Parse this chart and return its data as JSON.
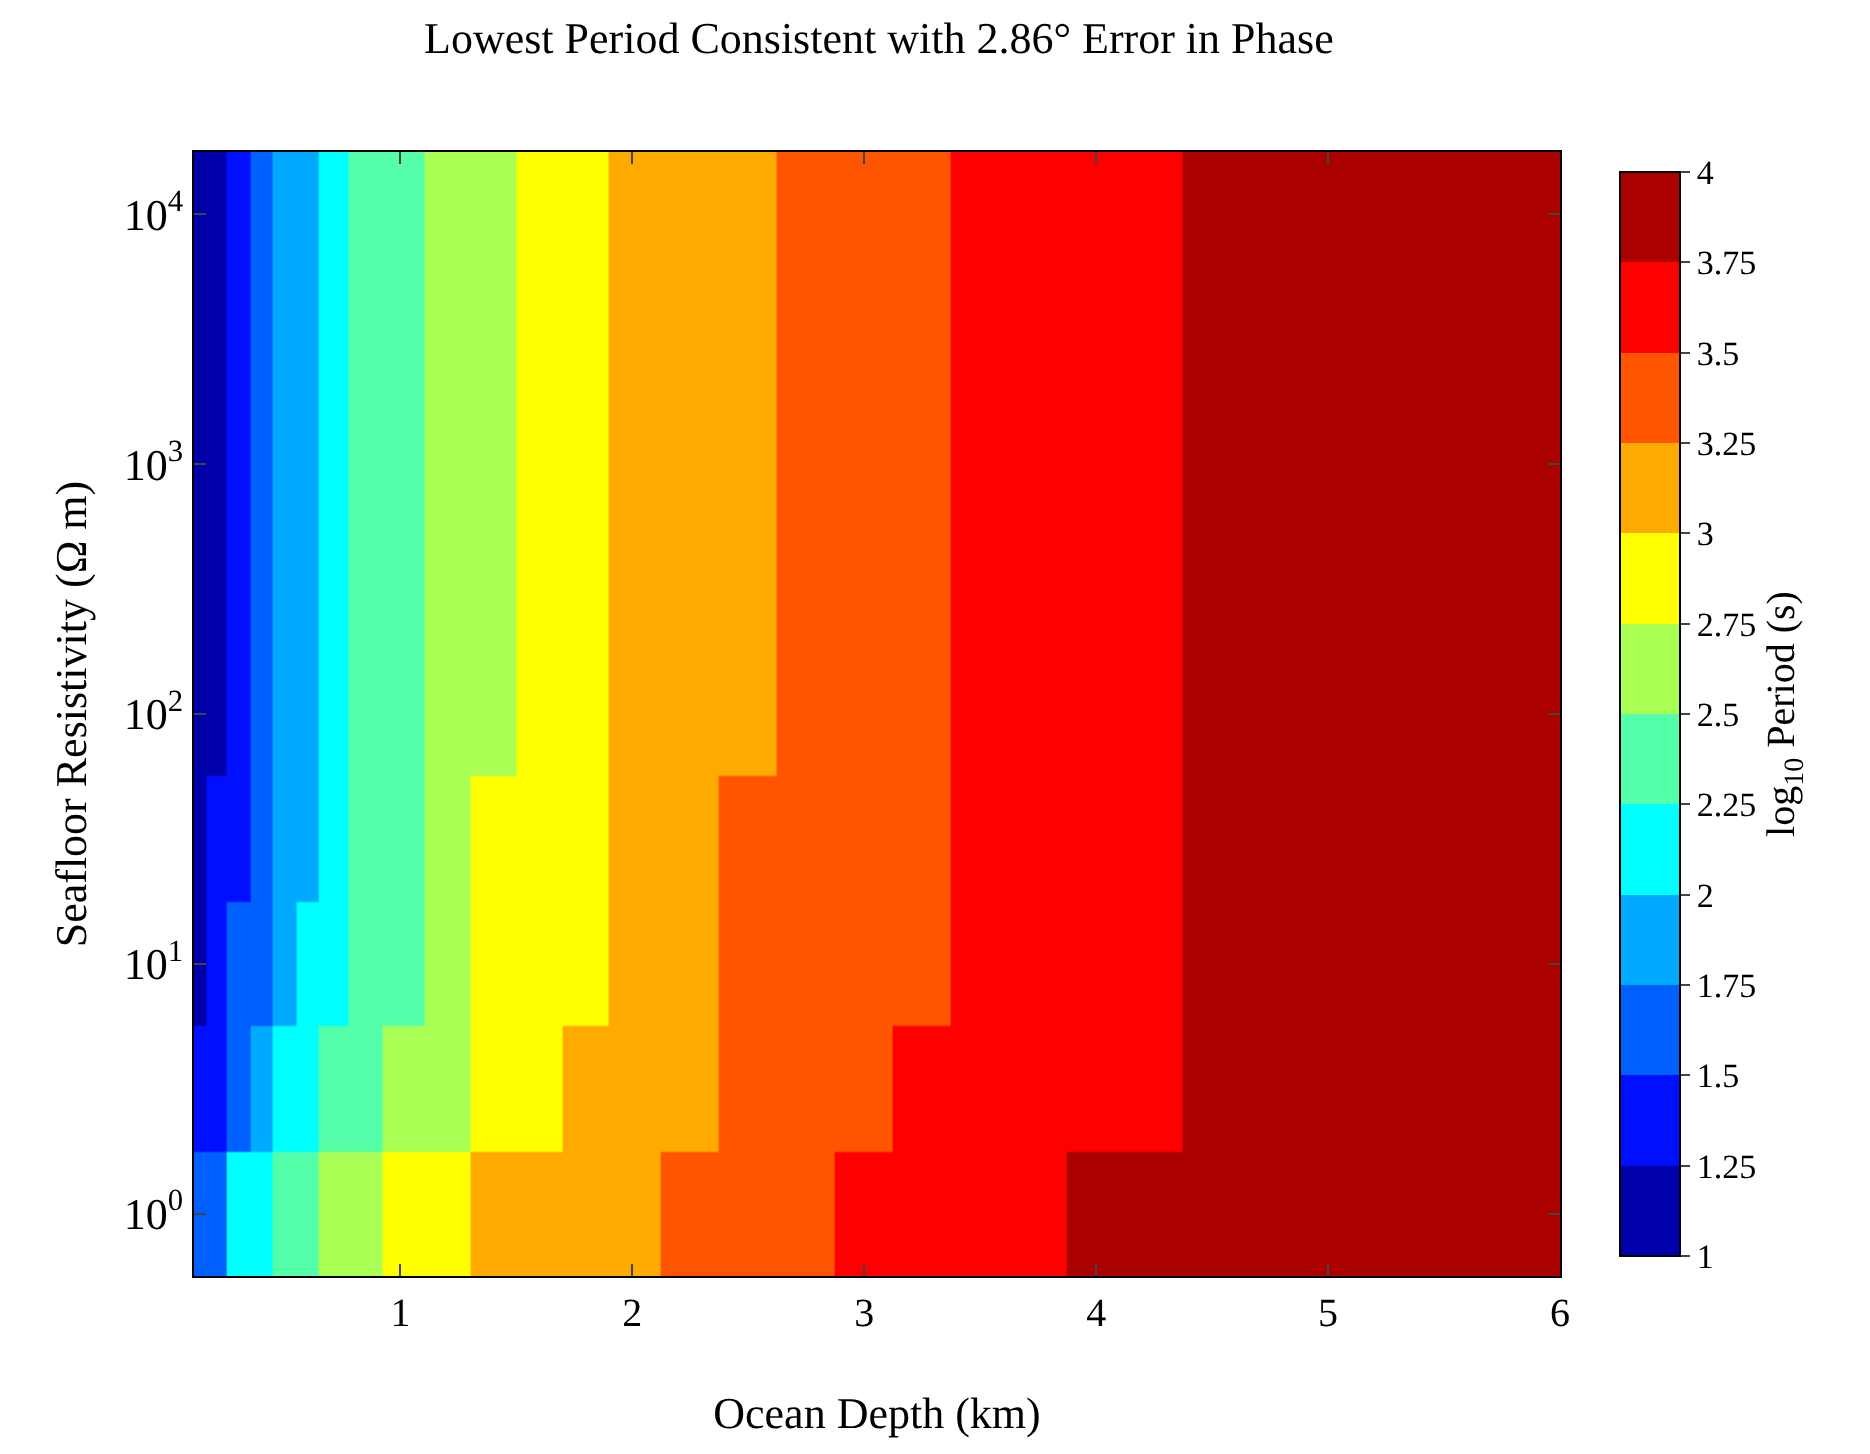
{
  "chart_data": {
    "type": "heatmap",
    "title": "Lowest Period Consistent with 2.86° Error in Phase",
    "xlabel": "Ocean Depth (km)",
    "ylabel": "Seafloor Resistivity (Ω m)",
    "clabel": "log$_{10}$ Period (s)",
    "x": [
      0.13,
      0.2,
      0.3,
      0.4,
      0.5,
      0.6,
      0.7,
      0.85,
      1,
      1.2,
      1.4,
      1.6,
      1.8,
      2,
      2.25,
      2.5,
      2.75,
      3,
      3.25,
      3.5,
      3.75,
      4,
      4.25,
      4.5,
      4.75,
      5,
      5.25,
      5.5,
      5.75,
      6
    ],
    "y_categories": [
      "10$^{4}$",
      null,
      "10$^{3}$",
      null,
      "10$^{2}$",
      null,
      "10$^{1}$",
      null,
      "10$^{0}$"
    ],
    "cells": [
      [
        1.04,
        1.19,
        1.4,
        1.6,
        1.8,
        1.95,
        2.09,
        2.28,
        2.43,
        2.6,
        2.74,
        2.85,
        2.95,
        3.04,
        3.14,
        3.24,
        3.31,
        3.39,
        3.46,
        3.52,
        3.58,
        3.64,
        3.69,
        3.75,
        3.79,
        3.83,
        3.87,
        3.91,
        3.95,
        3.99
      ],
      [
        1.04,
        1.19,
        1.4,
        1.6,
        1.8,
        1.95,
        2.09,
        2.28,
        2.43,
        2.6,
        2.74,
        2.85,
        2.95,
        3.04,
        3.14,
        3.24,
        3.31,
        3.39,
        3.46,
        3.52,
        3.58,
        3.64,
        3.69,
        3.75,
        3.79,
        3.83,
        3.87,
        3.91,
        3.95,
        3.99
      ],
      [
        1.04,
        1.19,
        1.4,
        1.6,
        1.8,
        1.95,
        2.09,
        2.28,
        2.43,
        2.6,
        2.74,
        2.85,
        2.95,
        3.04,
        3.14,
        3.24,
        3.31,
        3.39,
        3.46,
        3.52,
        3.58,
        3.64,
        3.69,
        3.75,
        3.79,
        3.83,
        3.87,
        3.91,
        3.95,
        3.99
      ],
      [
        1.04,
        1.19,
        1.4,
        1.6,
        1.8,
        1.95,
        2.09,
        2.28,
        2.43,
        2.6,
        2.74,
        2.85,
        2.95,
        3.04,
        3.14,
        3.24,
        3.31,
        3.39,
        3.46,
        3.52,
        3.58,
        3.64,
        3.69,
        3.75,
        3.79,
        3.83,
        3.87,
        3.91,
        3.95,
        3.99
      ],
      [
        1.04,
        1.19,
        1.4,
        1.6,
        1.8,
        1.95,
        2.09,
        2.28,
        2.43,
        2.6,
        2.74,
        2.85,
        2.95,
        3.04,
        3.14,
        3.24,
        3.31,
        3.39,
        3.46,
        3.52,
        3.58,
        3.64,
        3.69,
        3.75,
        3.79,
        3.83,
        3.87,
        3.91,
        3.95,
        3.99
      ],
      [
        1.09,
        1.25,
        1.48,
        1.67,
        1.84,
        1.99,
        2.12,
        2.3,
        2.45,
        2.61,
        2.75,
        2.85,
        2.96,
        3.05,
        3.15,
        3.25,
        3.32,
        3.39,
        3.47,
        3.53,
        3.59,
        3.64,
        3.7,
        3.75,
        3.79,
        3.83,
        3.87,
        3.92,
        3.96,
        4.0
      ],
      [
        1.16,
        1.33,
        1.56,
        1.73,
        1.88,
        2.02,
        2.17,
        2.34,
        2.47,
        2.62,
        2.76,
        2.86,
        2.97,
        3.06,
        3.16,
        3.26,
        3.33,
        3.4,
        3.48,
        3.54,
        3.59,
        3.65,
        3.71,
        3.76,
        3.8,
        3.84,
        3.89,
        3.93,
        3.97,
        4.0
      ],
      [
        1.25,
        1.44,
        1.67,
        1.84,
        2.0,
        2.14,
        2.27,
        2.41,
        2.55,
        2.73,
        2.85,
        2.97,
        3.06,
        3.13,
        3.23,
        3.31,
        3.38,
        3.46,
        3.52,
        3.58,
        3.63,
        3.68,
        3.74,
        3.78,
        3.83,
        3.87,
        3.91,
        3.96,
        4.0,
        4.0
      ],
      [
        1.52,
        1.72,
        2.01,
        2.18,
        2.33,
        2.45,
        2.54,
        2.65,
        2.76,
        2.88,
        3.0,
        3.08,
        3.16,
        3.24,
        3.32,
        3.39,
        3.47,
        3.53,
        3.59,
        3.64,
        3.7,
        3.75,
        3.79,
        3.84,
        3.88,
        3.92,
        3.97,
        4.0,
        4.0,
        4.0
      ]
    ],
    "colors": [
      "#0000aa",
      "#0010ff",
      "#0060ff",
      "#00aaff",
      "#00ffff",
      "#55ffaa",
      "#aaff55",
      "#ffff00",
      "#ffaa00",
      "#ff5500",
      "#ff0000",
      "#aa0000"
    ],
    "clim": [
      1,
      4
    ],
    "cticks": [
      1,
      1.25,
      1.5,
      1.75,
      2,
      2.25,
      2.5,
      2.75,
      3,
      3.25,
      3.5,
      3.75,
      4
    ],
    "xlim": [
      0.11,
      6
    ],
    "xticks": [
      1,
      2,
      3,
      4,
      5,
      6
    ]
  }
}
